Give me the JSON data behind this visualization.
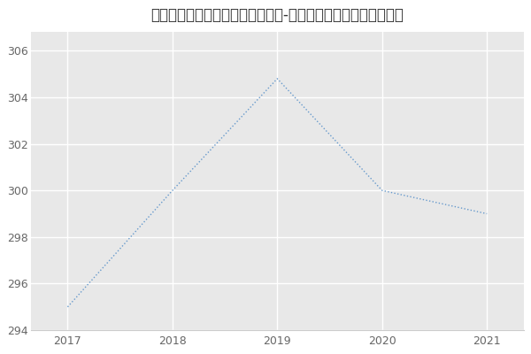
{
  "title": "南通大学医学院、药学院眼科学（-历年复试）研究生录取分数线",
  "x": [
    2017,
    2018,
    2019,
    2020,
    2021
  ],
  "y": [
    295,
    300,
    304.8,
    300,
    299
  ],
  "line_color": "#6699cc",
  "fig_bg_color": "#ffffff",
  "plot_bg_color": "#e8e8e8",
  "xlim": [
    2016.65,
    2021.35
  ],
  "ylim": [
    294,
    306.8
  ],
  "yticks": [
    294,
    296,
    298,
    300,
    302,
    304,
    306
  ],
  "xticks": [
    2017,
    2018,
    2019,
    2020,
    2021
  ],
  "grid_color": "#ffffff",
  "title_fontsize": 12
}
